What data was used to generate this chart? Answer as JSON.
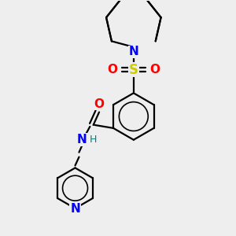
{
  "background_color": "#eeeeee",
  "atom_colors": {
    "N": "#0000ff",
    "O": "#ff0000",
    "S": "#cccc00",
    "C": "#000000",
    "H": "#008080"
  },
  "bond_color": "#000000",
  "bond_width": 1.6
}
